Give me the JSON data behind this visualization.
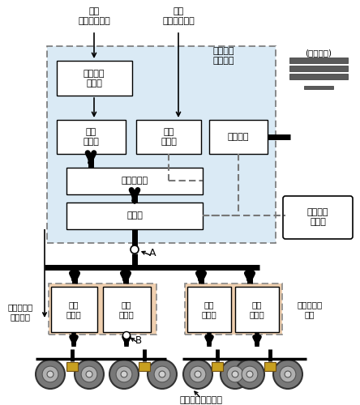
{
  "light_blue": "#daeaf5",
  "box_white": "#ffffff",
  "pink_fill": "#f2c89a",
  "dashed_color": "#666666",
  "line_color": "#000000",
  "labels": {
    "joyo": "常用\nブレーキ指令",
    "hijo": "非常\nブレーキ指令",
    "brake_ctrl": "ブレーキ\n制御装置",
    "brake_recv": "ブレーキ\n受量器",
    "denku_henkan": "電空\n変換弁",
    "hijo_denjibn": "非常\n電磁弁",
    "ouka_juben": "応荷重弁",
    "fukushiki_gyoshi": "複式逆止弁",
    "chukei_ben": "中継弁",
    "supply_tank": "供給空気\nタンク",
    "spring_label": "(空気ばね)",
    "skid_ctrl_cmd": "滑走制御弁\n動作指令",
    "skid_ctrl_valve": "滑走\n制御弁",
    "skid_ctrl_device": "滑走制御弁\n装置",
    "brake_cylinder": "ブレーキシリンダ",
    "point_A": "A",
    "point_B": "B"
  }
}
